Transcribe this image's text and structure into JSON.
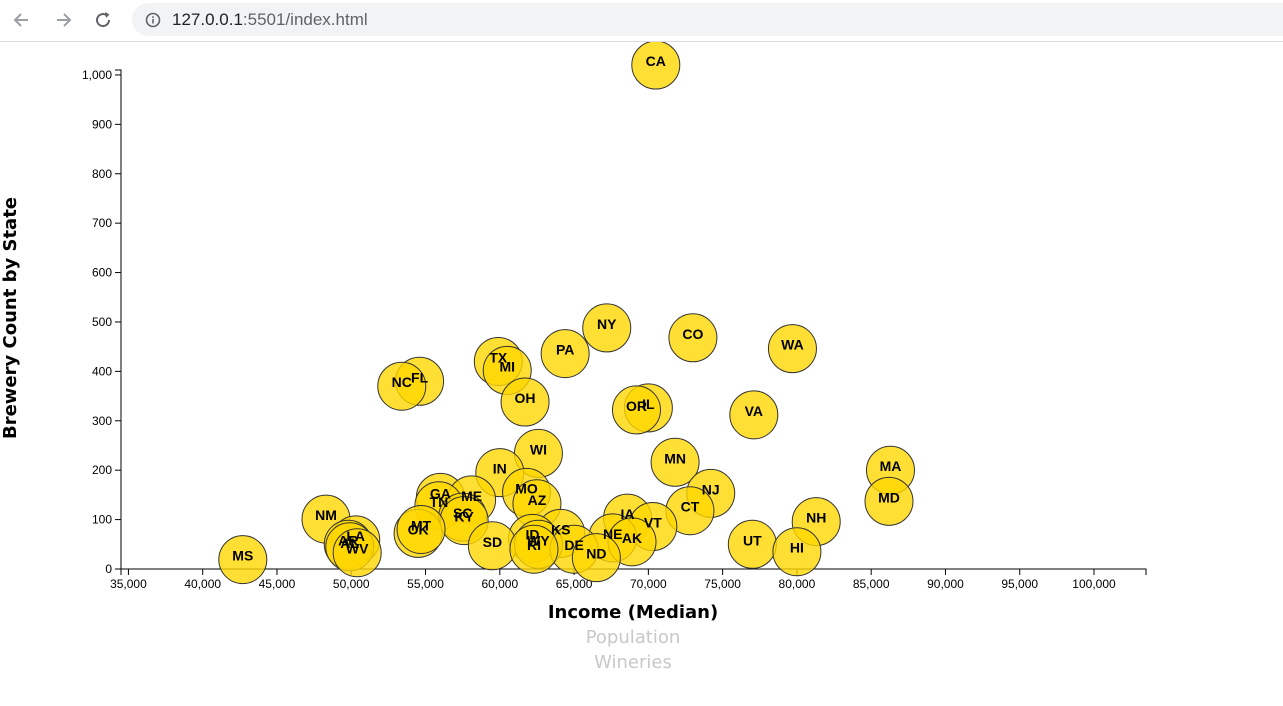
{
  "browser": {
    "url_host": "127.0.0.1",
    "url_rest": ":5501/index.html"
  },
  "colors": {
    "bubble_fill": "#ffd700",
    "bubble_stroke": "#333333",
    "inactive_label": "#c8c8c8"
  },
  "chart_data": {
    "type": "scatter",
    "xlabel": "Income (Median)",
    "ylabel": "Brewery Count by State",
    "x_axis_options": [
      "Income (Median)",
      "Population",
      "Wineries"
    ],
    "active_x_axis": "Income (Median)",
    "xlim": [
      34500,
      103500
    ],
    "ylim": [
      0,
      1010
    ],
    "x_ticks": [
      "35,000",
      "40,000",
      "45,000",
      "50,000",
      "55,000",
      "60,000",
      "65,000",
      "70,000",
      "75,000",
      "80,000",
      "85,000",
      "90,000",
      "95,000",
      "100,000"
    ],
    "x_tick_values": [
      35000,
      40000,
      45000,
      50000,
      55000,
      60000,
      65000,
      70000,
      75000,
      80000,
      85000,
      90000,
      95000,
      100000
    ],
    "y_ticks": [
      "0",
      "100",
      "200",
      "300",
      "400",
      "500",
      "600",
      "700",
      "800",
      "900",
      "1,000"
    ],
    "y_tick_values": [
      0,
      100,
      200,
      300,
      400,
      500,
      600,
      700,
      800,
      900,
      1000
    ],
    "grid": false,
    "points": [
      {
        "label": "CA",
        "x": 70500,
        "y": 1020
      },
      {
        "label": "NY",
        "x": 67200,
        "y": 488
      },
      {
        "label": "CO",
        "x": 73000,
        "y": 468
      },
      {
        "label": "WA",
        "x": 79700,
        "y": 446
      },
      {
        "label": "PA",
        "x": 64400,
        "y": 436
      },
      {
        "label": "TX",
        "x": 59900,
        "y": 420
      },
      {
        "label": "MI",
        "x": 60500,
        "y": 402
      },
      {
        "label": "FL",
        "x": 54600,
        "y": 380
      },
      {
        "label": "NC",
        "x": 53400,
        "y": 370
      },
      {
        "label": "OH",
        "x": 61700,
        "y": 338
      },
      {
        "label": "IL",
        "x": 70000,
        "y": 326
      },
      {
        "label": "OR",
        "x": 69200,
        "y": 322
      },
      {
        "label": "VA",
        "x": 77100,
        "y": 312
      },
      {
        "label": "WI",
        "x": 62600,
        "y": 234
      },
      {
        "label": "MN",
        "x": 71800,
        "y": 216
      },
      {
        "label": "MA",
        "x": 86300,
        "y": 200
      },
      {
        "label": "IN",
        "x": 60000,
        "y": 195
      },
      {
        "label": "NJ",
        "x": 74200,
        "y": 153
      },
      {
        "label": "MO",
        "x": 61800,
        "y": 155
      },
      {
        "label": "GA",
        "x": 56000,
        "y": 145
      },
      {
        "label": "ME",
        "x": 58100,
        "y": 140
      },
      {
        "label": "MD",
        "x": 86200,
        "y": 137
      },
      {
        "label": "AZ",
        "x": 62500,
        "y": 132
      },
      {
        "label": "TN",
        "x": 55900,
        "y": 128
      },
      {
        "label": "CT",
        "x": 72800,
        "y": 118
      },
      {
        "label": "SC",
        "x": 57500,
        "y": 105
      },
      {
        "label": "NM",
        "x": 48300,
        "y": 101
      },
      {
        "label": "NH",
        "x": 81300,
        "y": 96
      },
      {
        "label": "IA",
        "x": 68600,
        "y": 103
      },
      {
        "label": "VT",
        "x": 70300,
        "y": 86
      },
      {
        "label": "KY",
        "x": 57600,
        "y": 98
      },
      {
        "label": "KS",
        "x": 64100,
        "y": 72
      },
      {
        "label": "OK",
        "x": 54500,
        "y": 72
      },
      {
        "label": "MT",
        "x": 54700,
        "y": 80
      },
      {
        "label": "ID",
        "x": 62200,
        "y": 62
      },
      {
        "label": "NE",
        "x": 67600,
        "y": 63
      },
      {
        "label": "LA",
        "x": 50300,
        "y": 59
      },
      {
        "label": "AK",
        "x": 68900,
        "y": 55
      },
      {
        "label": "AR",
        "x": 49800,
        "y": 50
      },
      {
        "label": "UT",
        "x": 77000,
        "y": 50
      },
      {
        "label": "SD",
        "x": 59500,
        "y": 47
      },
      {
        "label": "WY",
        "x": 62600,
        "y": 50
      },
      {
        "label": "DE",
        "x": 65000,
        "y": 40
      },
      {
        "label": "RI",
        "x": 62300,
        "y": 40
      },
      {
        "label": "HI",
        "x": 80000,
        "y": 35
      },
      {
        "label": "AL",
        "x": 49900,
        "y": 45
      },
      {
        "label": "WV",
        "x": 50400,
        "y": 33
      },
      {
        "label": "ND",
        "x": 66500,
        "y": 23
      },
      {
        "label": "MS",
        "x": 42700,
        "y": 19
      }
    ]
  }
}
